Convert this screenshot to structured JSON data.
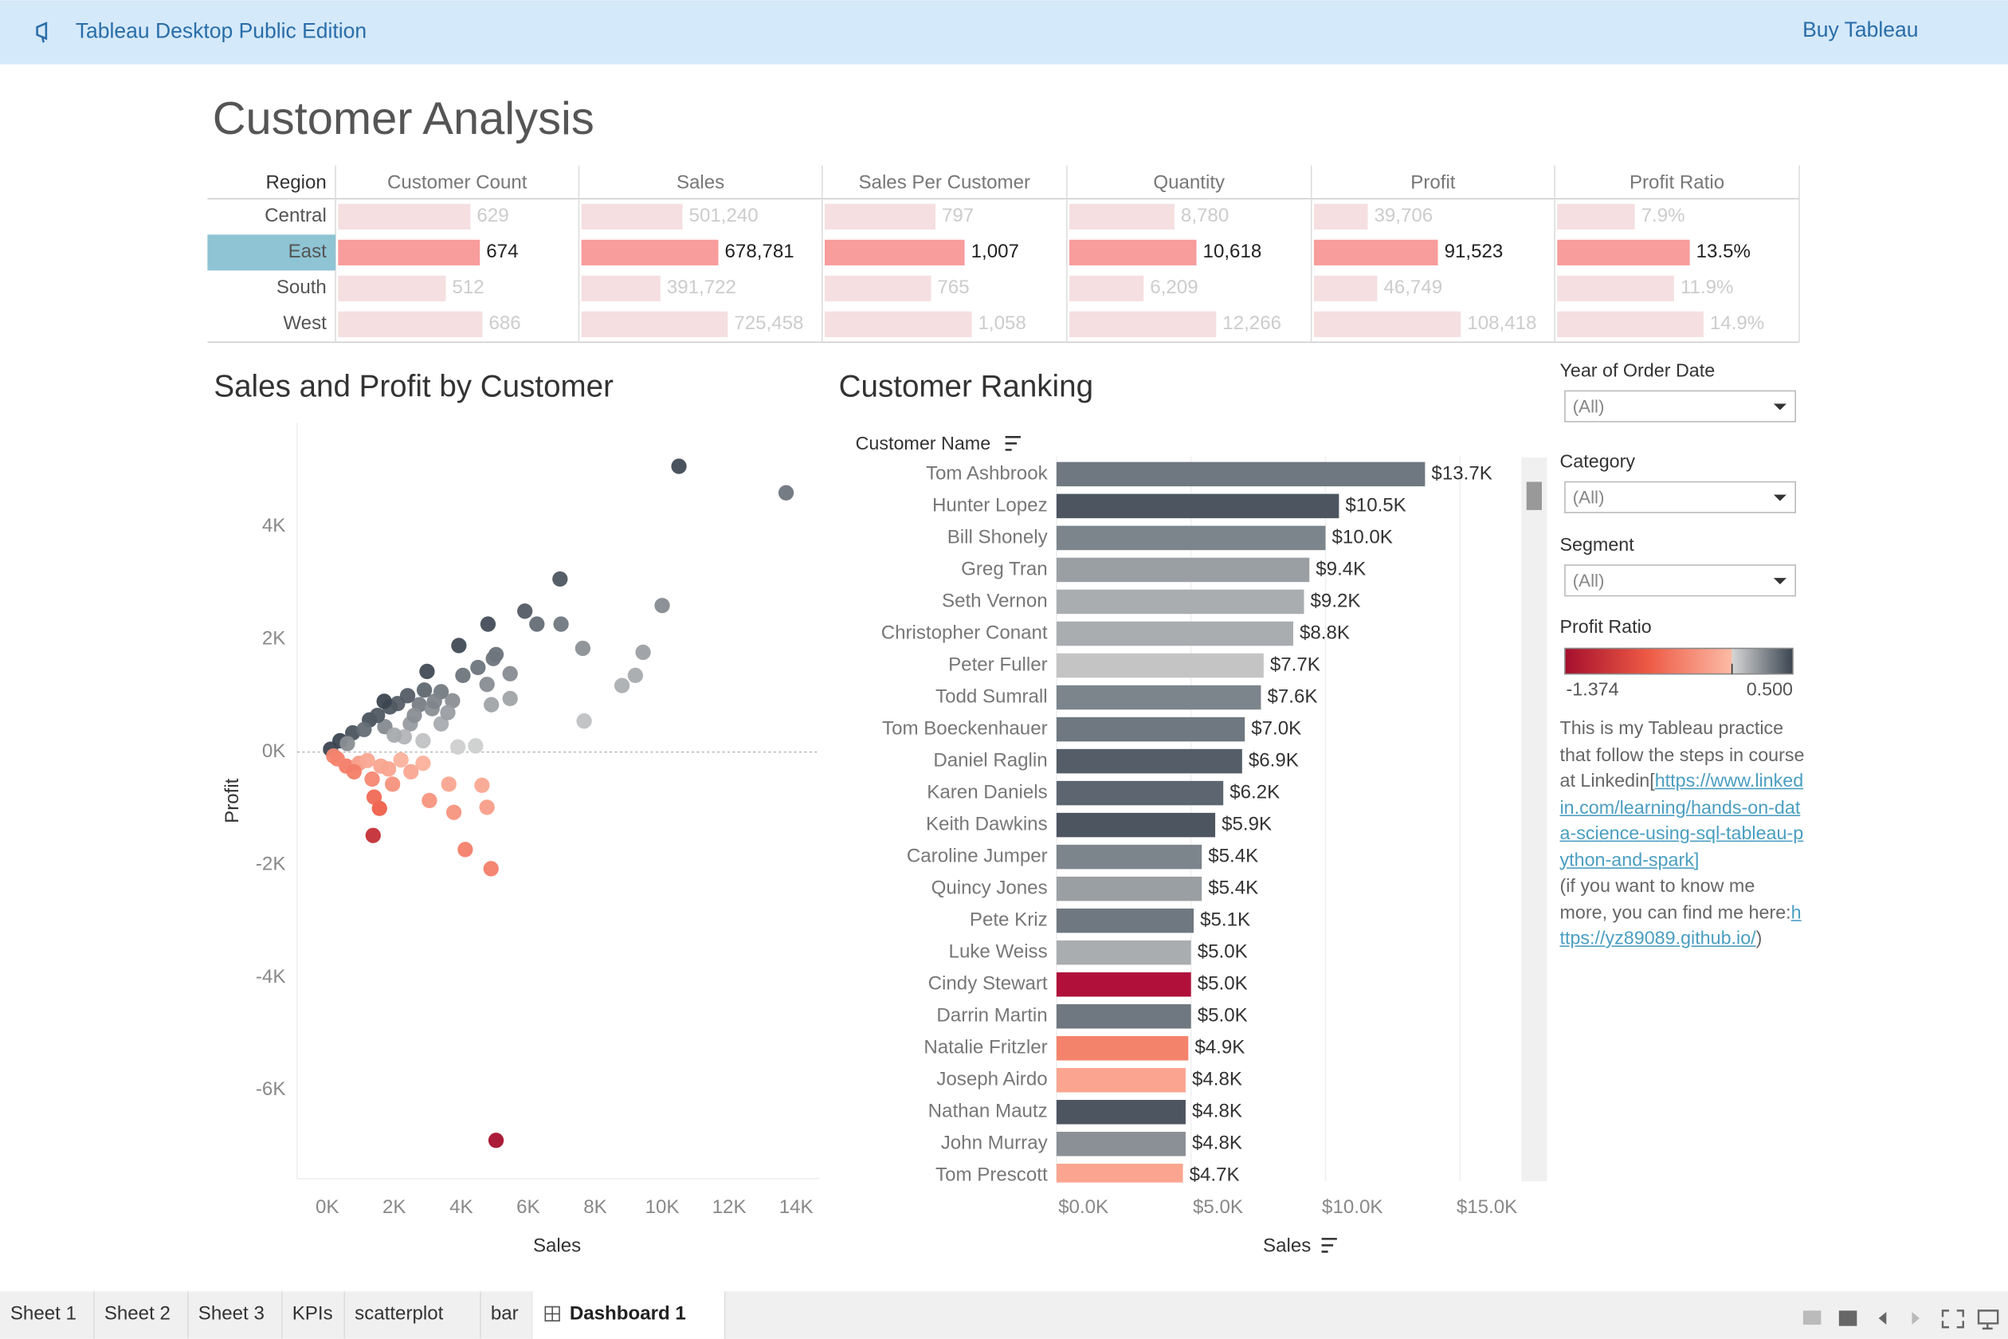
{
  "header": {
    "product": "Tableau Desktop Public Edition",
    "buy": "Buy Tableau"
  },
  "title": "Customer Analysis",
  "kpi_table": {
    "row_header": "Region",
    "rows": [
      "Central",
      "East",
      "South",
      "West"
    ],
    "selected": "East",
    "bar_color": "#f5dfe0",
    "selected_bar_color": "#f89c9c",
    "columns": [
      {
        "name": "Customer Count",
        "xlim": [
          0,
          700
        ],
        "values": [
          629,
          674,
          512,
          686
        ]
      },
      {
        "name": "Sales",
        "xlim": [
          0,
          730000
        ],
        "values": [
          501240,
          678781,
          391722,
          725458
        ],
        "value_labels": [
          "501,240",
          "678,781",
          "391,722",
          "725,458"
        ]
      },
      {
        "name": "Sales Per Customer",
        "xlim": [
          0,
          1060
        ],
        "values": [
          797,
          1007,
          765,
          1058
        ],
        "value_labels": [
          "797",
          "1,007",
          "765",
          "1,058"
        ]
      },
      {
        "name": "Quantity",
        "xlim": [
          0,
          12300
        ],
        "values": [
          8780,
          10618,
          6209,
          12266
        ],
        "value_labels": [
          "8,780",
          "10,618",
          "6,209",
          "12,266"
        ]
      },
      {
        "name": "Profit",
        "xlim": [
          0,
          108700
        ],
        "values": [
          39706,
          91523,
          46749,
          108418
        ],
        "value_labels": [
          "39,706",
          "91,523",
          "46,749",
          "108,418"
        ]
      },
      {
        "name": "Profit Ratio",
        "xlim": [
          0,
          15
        ],
        "values": [
          7.9,
          13.5,
          11.9,
          14.9
        ],
        "value_labels": [
          "7.9%",
          "13.5%",
          "11.9%",
          "14.9%"
        ]
      }
    ]
  },
  "scatter": {
    "type": "scatter",
    "title": "Sales and Profit by Customer",
    "x_label": "Sales",
    "y_label": "Profit",
    "x": [
      10500,
      13700,
      6950,
      10000,
      5900,
      4800,
      6260,
      6980,
      3930,
      7630,
      9430,
      5040,
      4960,
      4500,
      5460,
      2980,
      4050,
      9200,
      4770,
      8800,
      3400,
      5460,
      4900,
      3740,
      2750,
      3130,
      2100,
      1870,
      1260,
      760,
      380,
      100,
      7670,
      4430,
      3900,
      2480,
      1720,
      2300,
      2860,
      3400,
      1500,
      2000,
      2600,
      3200,
      1100,
      600,
      2400,
      3600,
      2900,
      1700,
      5040,
      1370,
      4120,
      4890,
      1560,
      3050,
      3780,
      3630,
      4770,
      4620,
      1340,
      1830,
      570,
      950,
      2200,
      190,
      1400,
      2860,
      1950,
      800,
      1200,
      1600,
      2500,
      300
    ],
    "y": [
      5070,
      4600,
      3070,
      2600,
      2500,
      2270,
      2270,
      2270,
      1890,
      1840,
      1770,
      1730,
      1660,
      1500,
      1390,
      1430,
      1360,
      1360,
      1200,
      1180,
      1070,
      950,
      840,
      910,
      840,
      770,
      860,
      800,
      570,
      340,
      200,
      50,
      550,
      110,
      90,
      500,
      450,
      270,
      200,
      500,
      650,
      300,
      650,
      900,
      400,
      150,
      1000,
      700,
      1100,
      900,
      -6890,
      -1480,
      -1730,
      -2070,
      -1000,
      -860,
      -1070,
      -570,
      -980,
      -590,
      -480,
      -300,
      -250,
      -200,
      -140,
      -70,
      -800,
      -200,
      -570,
      -350,
      -150,
      -250,
      -350,
      -120
    ],
    "xlim": [
      -900,
      14700
    ],
    "ylim": [
      -7570,
      5840
    ],
    "xticks": [
      {
        "value": 0,
        "label": "0K"
      },
      {
        "value": 2000,
        "label": "2K"
      },
      {
        "value": 4000,
        "label": "4K"
      },
      {
        "value": 6000,
        "label": "6K"
      },
      {
        "value": 8000,
        "label": "8K"
      },
      {
        "value": 10000,
        "label": "10K"
      },
      {
        "value": 12000,
        "label": "12K"
      },
      {
        "value": 14000,
        "label": "14K"
      }
    ],
    "yticks": [
      {
        "value": -6000,
        "label": "-6K"
      },
      {
        "value": -4000,
        "label": "-4K"
      },
      {
        "value": -2000,
        "label": "-2K"
      },
      {
        "value": 0,
        "label": "0K"
      },
      {
        "value": 2000,
        "label": "2K"
      },
      {
        "value": 4000,
        "label": "4K"
      }
    ],
    "zero_line": true
  },
  "ranking": {
    "type": "bar",
    "title": "Customer Ranking",
    "category_label": "Customer Name",
    "value_axis_label": "Sales",
    "categories": [
      "Tom Ashbrook",
      "Hunter Lopez",
      "Bill Shonely",
      "Greg Tran",
      "Seth Vernon",
      "Christopher Conant",
      "Peter Fuller",
      "Todd Sumrall",
      "Tom Boeckenhauer",
      "Daniel Raglin",
      "Karen Daniels",
      "Keith Dawkins",
      "Caroline Jumper",
      "Quincy Jones",
      "Pete Kriz",
      "Luke Weiss",
      "Cindy Stewart",
      "Darrin Martin",
      "Natalie Fritzler",
      "Joseph Airdo",
      "Nathan Mautz",
      "John Murray",
      "Tom Prescott"
    ],
    "values": [
      13700,
      10500,
      10000,
      9400,
      9200,
      8800,
      7700,
      7600,
      7000,
      6900,
      6200,
      5900,
      5400,
      5400,
      5100,
      5000,
      5000,
      5000,
      4900,
      4800,
      4800,
      4800,
      4700
    ],
    "value_labels": [
      "$13.7K",
      "$10.5K",
      "$10.0K",
      "$9.4K",
      "$9.2K",
      "$8.8K",
      "$7.7K",
      "$7.6K",
      "$7.0K",
      "$6.9K",
      "$6.2K",
      "$5.9K",
      "$5.4K",
      "$5.4K",
      "$5.1K",
      "$5.0K",
      "$5.0K",
      "$5.0K",
      "$4.9K",
      "$4.8K",
      "$4.8K",
      "$4.8K",
      "$4.7K"
    ],
    "colors": [
      "#6f7880",
      "#4d5560",
      "#7d858c",
      "#9a9fa3",
      "#a9adb0",
      "#a9adb0",
      "#c4c4c4",
      "#7d858c",
      "#6f7880",
      "#555d68",
      "#5d6570",
      "#4d5560",
      "#7d858c",
      "#9a9fa3",
      "#6f7880",
      "#a9adb0",
      "#b0103a",
      "#6f7880",
      "#f4836b",
      "#fba590",
      "#4d5560",
      "#8a9095",
      "#fba590"
    ],
    "xlim": [
      0,
      16900
    ],
    "xticks": [
      {
        "value": 0,
        "label": "$0.0K"
      },
      {
        "value": 5000,
        "label": "$5.0K"
      },
      {
        "value": 10000,
        "label": "$10.0K"
      },
      {
        "value": 15000,
        "label": "$15.0K"
      }
    ],
    "grid": true
  },
  "filters": [
    {
      "label": "Year of Order Date",
      "value": "(All)"
    },
    {
      "label": "Category",
      "value": "(All)"
    },
    {
      "label": "Segment",
      "value": "(All)"
    }
  ],
  "legend": {
    "title": "Profit Ratio",
    "min": -1.374,
    "max": {
      "value": 0.5,
      "label": "0.500"
    },
    "negative_colors": [
      "#fcbba6",
      "#ee5a45",
      "#a50f2d"
    ],
    "positive_colors": [
      "#d6d6d6",
      "#3b4550"
    ]
  },
  "note": {
    "text1": "This is my Tableau practice that follow the steps in course at Linkedin[",
    "link1": "https://www.linkedin.com/learning/hands-on-data-science-using-sql-tableau-python-and-spark]",
    "text2": "(if you want to know me more, you can find me here:",
    "link2": "https://yz89089.github.io/",
    "text3": ")"
  },
  "tabs": [
    "Sheet 1",
    "Sheet 2",
    "Sheet 3",
    "KPIs",
    "scatterplot",
    "bar",
    "Dashboard 1"
  ],
  "active_tab": "Dashboard 1"
}
